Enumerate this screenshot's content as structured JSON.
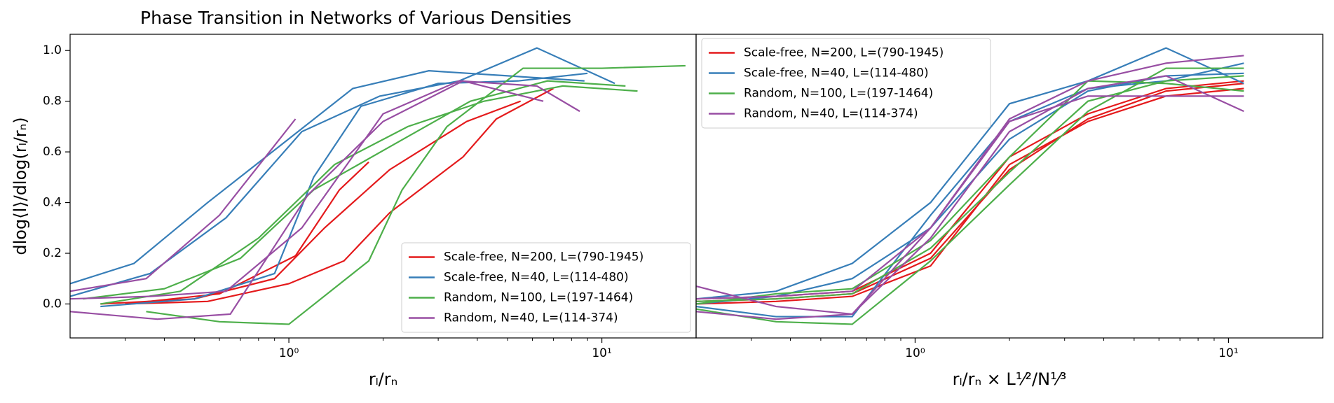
{
  "chart_data": {
    "type": "line",
    "title": "Phase Transition in Networks of Various Densities",
    "ylabel": "dlog⟨l⟩/dlog(rₗ/rₙ)",
    "ylim": [
      -0.134,
      1.064
    ],
    "yticks": [
      {
        "value": 0,
        "label": "0.0"
      },
      {
        "value": 0.2,
        "label": "0.2"
      },
      {
        "value": 0.4,
        "label": "0.4"
      },
      {
        "value": 0.6,
        "label": "0.6"
      },
      {
        "value": 0.8,
        "label": "0.8"
      },
      {
        "value": 1,
        "label": "1.0"
      }
    ],
    "xlim": [
      0.2,
      20
    ],
    "xscale": "log",
    "xticks": [
      {
        "value": 1,
        "label": "10⁰"
      },
      {
        "value": 10,
        "label": "10¹"
      }
    ],
    "xminorticks": [
      0.3,
      0.4,
      0.5,
      0.6,
      0.7,
      0.8,
      0.9,
      2,
      3,
      4,
      5,
      6,
      7,
      8,
      9
    ],
    "panels": [
      {
        "xlabel": "rₗ/rₙ",
        "legend": "lower right",
        "series": [
          {
            "name": "Scale-free, N=200, L=(790-1945)",
            "color": "#e41a1c",
            "lines": [
              {
                "x": [
                  0.3,
                  0.6,
                  1.05,
                  1.45,
                  1.8
                ],
                "values": [
                  0.0,
                  0.04,
                  0.19,
                  0.45,
                  0.56
                ]
              },
              {
                "x": [
                  0.3,
                  0.55,
                  1.0,
                  1.5,
                  2.1,
                  3.6,
                  4.6,
                  7.0
                ],
                "values": [
                  0.0,
                  0.01,
                  0.08,
                  0.17,
                  0.36,
                  0.58,
                  0.73,
                  0.85
                ]
              },
              {
                "x": [
                  0.25,
                  0.5,
                  0.9,
                  1.3,
                  2.1,
                  3.7,
                  5.5
                ],
                "values": [
                  0.0,
                  0.02,
                  0.1,
                  0.3,
                  0.53,
                  0.72,
                  0.8
                ]
              }
            ]
          },
          {
            "name": "Scale-free, N=40, L=(114-480)",
            "color": "#377eb8",
            "lines": [
              {
                "x": [
                  0.2,
                  0.32,
                  0.55,
                  0.95,
                  1.6,
                  2.8,
                  5.0,
                  8.8
                ],
                "values": [
                  0.08,
                  0.16,
                  0.4,
                  0.63,
                  0.85,
                  0.92,
                  0.9,
                  0.88
                ]
              },
              {
                "x": [
                  0.2,
                  0.36,
                  0.63,
                  1.1,
                  1.95,
                  3.5,
                  6.2,
                  11.0
                ],
                "values": [
                  0.03,
                  0.12,
                  0.34,
                  0.68,
                  0.82,
                  0.88,
                  1.01,
                  0.87
                ]
              },
              {
                "x": [
                  0.25,
                  0.5,
                  0.9,
                  1.2,
                  1.7,
                  3.0,
                  5.4,
                  9.0
                ],
                "values": [
                  -0.01,
                  0.02,
                  0.12,
                  0.5,
                  0.78,
                  0.87,
                  0.88,
                  0.91
                ]
              }
            ]
          },
          {
            "name": "Random, N=100, L=(197-1464)",
            "color": "#4daf4a",
            "lines": [
              {
                "x": [
                  0.35,
                  0.6,
                  1.0,
                  1.8,
                  2.3,
                  3.2,
                  5.6,
                  10.0,
                  18.5
                ],
                "values": [
                  -0.03,
                  -0.07,
                  -0.08,
                  0.17,
                  0.45,
                  0.7,
                  0.93,
                  0.93,
                  0.94
                ]
              },
              {
                "x": [
                  0.25,
                  0.45,
                  0.8,
                  1.4,
                  2.4,
                  4.2,
                  7.5,
                  13.0
                ],
                "values": [
                  0.0,
                  0.05,
                  0.26,
                  0.55,
                  0.7,
                  0.8,
                  0.86,
                  0.84
                ]
              },
              {
                "x": [
                  0.22,
                  0.4,
                  0.7,
                  1.2,
                  2.1,
                  3.8,
                  6.7,
                  11.9
                ],
                "values": [
                  0.02,
                  0.06,
                  0.18,
                  0.45,
                  0.62,
                  0.8,
                  0.88,
                  0.86
                ]
              }
            ]
          },
          {
            "name": "Random, N=40, L=(114-374)",
            "color": "#984ea3",
            "lines": [
              {
                "x": [
                  0.2,
                  0.35,
                  0.6,
                  1.05
                ],
                "values": [
                  0.05,
                  0.1,
                  0.35,
                  0.73
                ]
              },
              {
                "x": [
                  0.2,
                  0.38,
                  0.65,
                  1.15,
                  2.0,
                  3.6,
                  6.5
                ],
                "values": [
                  -0.03,
                  -0.06,
                  -0.04,
                  0.43,
                  0.72,
                  0.88,
                  0.8
                ]
              },
              {
                "x": [
                  0.2,
                  0.36,
                  0.63,
                  1.1,
                  2.0,
                  3.5,
                  6.2,
                  8.5
                ],
                "values": [
                  0.02,
                  0.03,
                  0.05,
                  0.3,
                  0.75,
                  0.88,
                  0.86,
                  0.76
                ]
              }
            ]
          }
        ]
      },
      {
        "xlabel": "rₗ/rₙ × L¹⁄²/N¹⁄³",
        "legend": "upper left",
        "series": [
          {
            "name": "Scale-free, N=200, L=(790-1945)",
            "color": "#e41a1c",
            "lines": [
              {
                "x": [
                  0.2,
                  0.36,
                  0.63,
                  1.12,
                  2.0,
                  3.56,
                  6.32,
                  11.2
                ],
                "values": [
                  0.0,
                  0.01,
                  0.03,
                  0.15,
                  0.55,
                  0.72,
                  0.82,
                  0.85
                ]
              },
              {
                "x": [
                  0.2,
                  0.36,
                  0.63,
                  1.12,
                  2.0,
                  3.56,
                  6.32,
                  11.2
                ],
                "values": [
                  0.02,
                  0.03,
                  0.05,
                  0.2,
                  0.58,
                  0.75,
                  0.85,
                  0.88
                ]
              },
              {
                "x": [
                  0.2,
                  0.36,
                  0.63,
                  1.12,
                  2.0,
                  3.56,
                  6.32,
                  11.2
                ],
                "values": [
                  0.01,
                  0.02,
                  0.04,
                  0.18,
                  0.53,
                  0.73,
                  0.84,
                  0.87
                ]
              }
            ]
          },
          {
            "name": "Scale-free, N=40, L=(114-480)",
            "color": "#377eb8",
            "lines": [
              {
                "x": [
                  0.2,
                  0.36,
                  0.63,
                  1.12,
                  2.0,
                  3.56,
                  6.32,
                  11.2
                ],
                "values": [
                  0.02,
                  0.05,
                  0.16,
                  0.4,
                  0.79,
                  0.88,
                  1.01,
                  0.87
                ]
              },
              {
                "x": [
                  0.2,
                  0.36,
                  0.63,
                  1.12,
                  2.0,
                  3.56,
                  6.32,
                  11.2
                ],
                "values": [
                  -0.01,
                  -0.05,
                  -0.05,
                  0.35,
                  0.72,
                  0.85,
                  0.88,
                  0.95
                ]
              },
              {
                "x": [
                  0.2,
                  0.36,
                  0.63,
                  1.12,
                  2.0,
                  3.56,
                  6.32,
                  11.2
                ],
                "values": [
                  0.0,
                  0.03,
                  0.1,
                  0.3,
                  0.65,
                  0.84,
                  0.9,
                  0.91
                ]
              }
            ]
          },
          {
            "name": "Random, N=100, L=(197-1464)",
            "color": "#4daf4a",
            "lines": [
              {
                "x": [
                  0.2,
                  0.36,
                  0.63,
                  1.12,
                  2.0,
                  3.56,
                  6.32,
                  11.2
                ],
                "values": [
                  -0.02,
                  -0.07,
                  -0.08,
                  0.17,
                  0.47,
                  0.76,
                  0.93,
                  0.93
                ]
              },
              {
                "x": [
                  0.2,
                  0.36,
                  0.63,
                  1.12,
                  2.0,
                  3.56,
                  6.32,
                  11.2
                ],
                "values": [
                  0.0,
                  0.04,
                  0.06,
                  0.25,
                  0.58,
                  0.88,
                  0.87,
                  0.84
                ]
              },
              {
                "x": [
                  0.2,
                  0.36,
                  0.63,
                  1.12,
                  2.0,
                  3.56,
                  6.32,
                  11.2
                ],
                "values": [
                  0.01,
                  0.02,
                  0.04,
                  0.22,
                  0.52,
                  0.8,
                  0.88,
                  0.9
                ]
              }
            ]
          },
          {
            "name": "Random, N=40, L=(114-374)",
            "color": "#984ea3",
            "lines": [
              {
                "x": [
                  0.2,
                  0.36,
                  0.63,
                  1.12,
                  2.0,
                  3.56,
                  6.32,
                  11.2
                ],
                "values": [
                  0.07,
                  -0.01,
                  -0.04,
                  0.3,
                  0.72,
                  0.82,
                  0.82,
                  0.82
                ]
              },
              {
                "x": [
                  0.2,
                  0.36,
                  0.63,
                  1.12,
                  2.0,
                  3.56,
                  6.32,
                  11.2
                ],
                "values": [
                  -0.03,
                  -0.06,
                  -0.04,
                  0.26,
                  0.68,
                  0.85,
                  0.9,
                  0.76
                ]
              },
              {
                "x": [
                  0.2,
                  0.36,
                  0.63,
                  1.12,
                  2.0,
                  3.56,
                  6.32,
                  11.2
                ],
                "values": [
                  0.02,
                  0.03,
                  0.05,
                  0.3,
                  0.73,
                  0.88,
                  0.95,
                  0.98
                ]
              }
            ]
          }
        ]
      }
    ]
  }
}
